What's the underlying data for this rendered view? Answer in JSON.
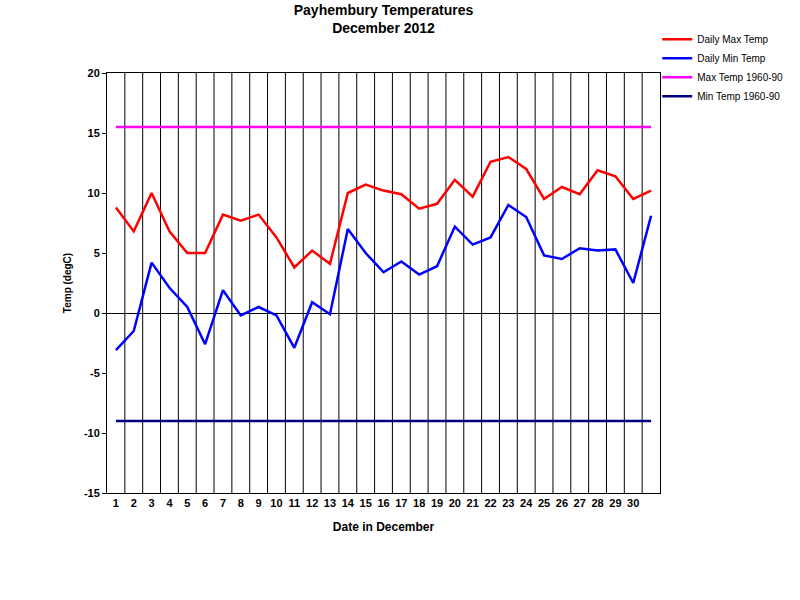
{
  "chart_data": {
    "type": "line",
    "title": "Payhembury Temperatures\nDecember 2012",
    "x_label": "Date in December",
    "y_label": "Temp (degC)",
    "categories": [
      "1",
      "2",
      "3",
      "4",
      "5",
      "6",
      "7",
      "8",
      "9",
      "10",
      "11",
      "12",
      "13",
      "14",
      "15",
      "16",
      "17",
      "18",
      "19",
      "20",
      "21",
      "22",
      "23",
      "24",
      "25",
      "26",
      "27",
      "28",
      "29",
      "30",
      null
    ],
    "series": [
      {
        "name": "Daily Max Temp",
        "color": "#ff0000",
        "values": [
          8.8,
          6.8,
          10.0,
          6.8,
          5.0,
          5.0,
          8.2,
          7.7,
          8.2,
          6.3,
          3.8,
          5.2,
          4.1,
          10.0,
          10.7,
          10.2,
          9.9,
          8.7,
          9.1,
          11.1,
          9.7,
          12.6,
          13.0,
          12.0,
          9.5,
          10.5,
          9.9,
          11.9,
          11.4,
          9.5,
          10.2
        ]
      },
      {
        "name": "Daily Min Temp",
        "color": "#0000ff",
        "values": [
          -3.1,
          -1.5,
          4.2,
          2.1,
          0.5,
          -2.6,
          1.9,
          -0.2,
          0.5,
          -0.2,
          -2.9,
          0.9,
          -0.1,
          7.0,
          5.0,
          3.4,
          4.3,
          3.2,
          3.9,
          7.2,
          5.7,
          6.3,
          9.0,
          8.0,
          4.8,
          4.5,
          5.4,
          5.2,
          5.3,
          2.5,
          8.1
        ]
      },
      {
        "name": "Max Temp 1960-90",
        "color": "#ff00ff",
        "values": [
          15.5,
          15.5,
          15.5,
          15.5,
          15.5,
          15.5,
          15.5,
          15.5,
          15.5,
          15.5,
          15.5,
          15.5,
          15.5,
          15.5,
          15.5,
          15.5,
          15.5,
          15.5,
          15.5,
          15.5,
          15.5,
          15.5,
          15.5,
          15.5,
          15.5,
          15.5,
          15.5,
          15.5,
          15.5,
          15.5,
          15.5
        ]
      },
      {
        "name": "Min Temp 1960-90",
        "color": "#000080",
        "values": [
          -9.0,
          -9.0,
          -9.0,
          -9.0,
          -9.0,
          -9.0,
          -9.0,
          -9.0,
          -9.0,
          -9.0,
          -9.0,
          -9.0,
          -9.0,
          -9.0,
          -9.0,
          -9.0,
          -9.0,
          -9.0,
          -9.0,
          -9.0,
          -9.0,
          -9.0,
          -9.0,
          -9.0,
          -9.0,
          -9.0,
          -9.0,
          -9.0,
          -9.0,
          -9.0,
          -9.0
        ]
      }
    ],
    "ylim": [
      -15,
      20
    ],
    "yticks": [
      -15,
      -10,
      -5,
      0,
      5,
      10,
      15,
      20
    ],
    "grid": "x",
    "legend": "top right"
  }
}
